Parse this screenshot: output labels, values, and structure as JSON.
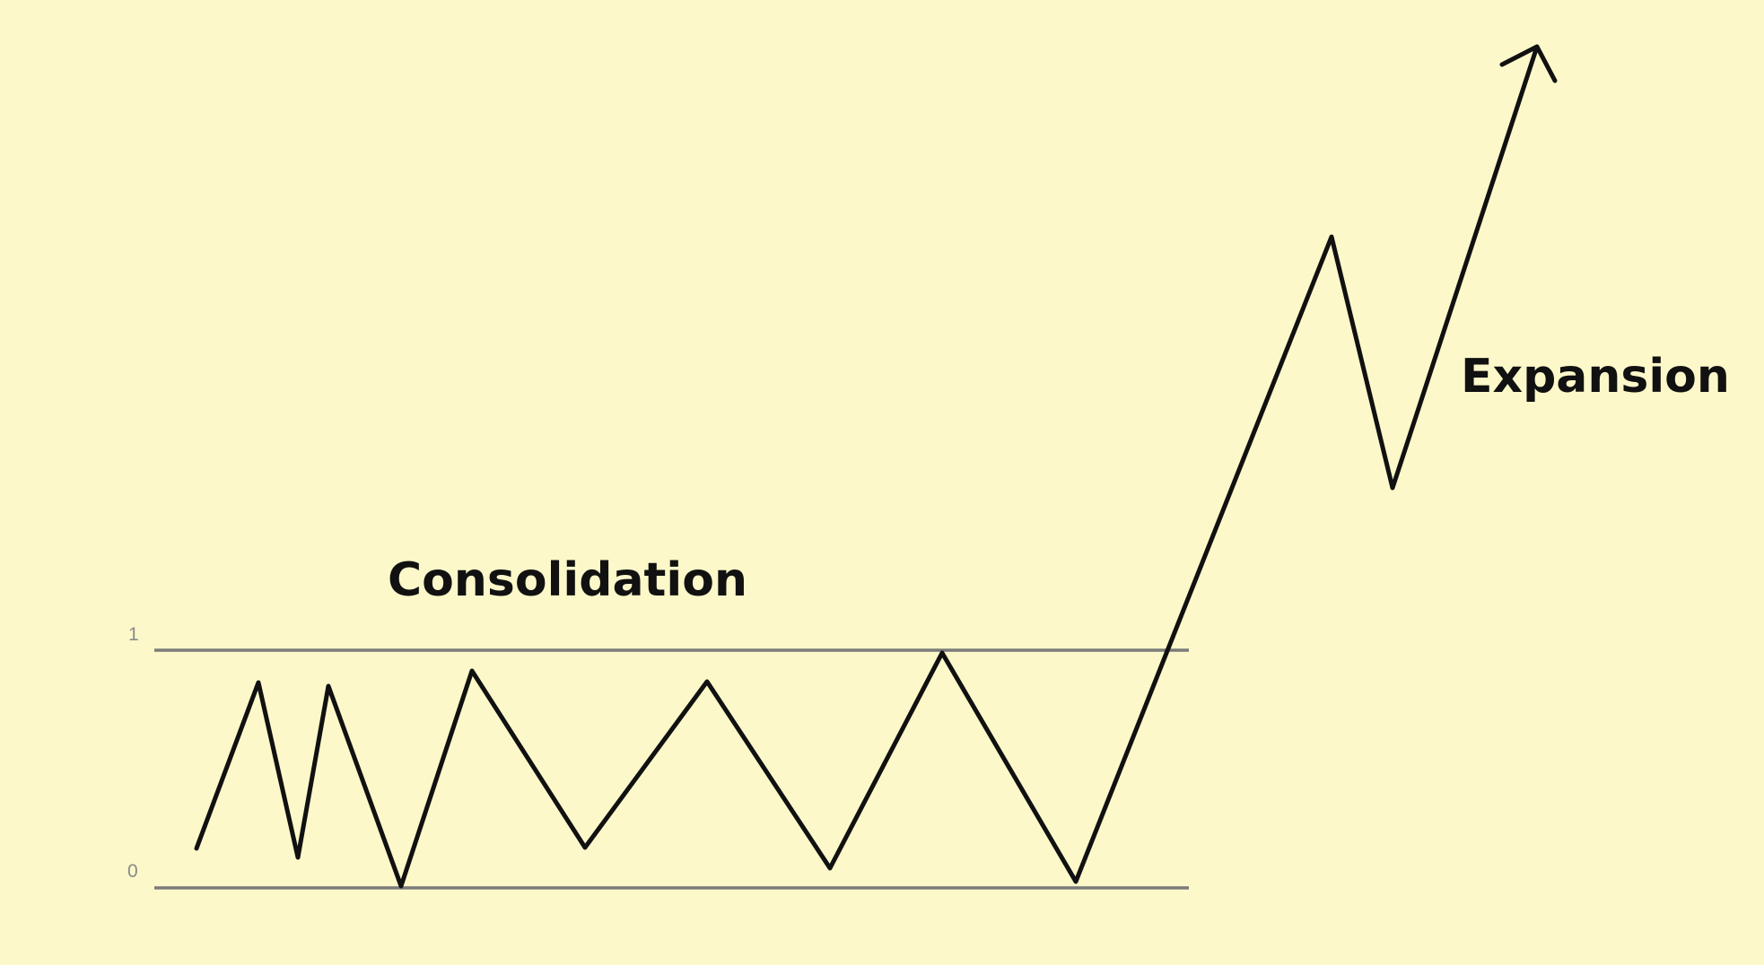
{
  "labels": {
    "consolidation": "Consolidation",
    "expansion": "Expansion"
  },
  "range": {
    "top_label": "1",
    "bottom_label": "0"
  },
  "colors": {
    "background": "#fcf8c9",
    "path": "#111111",
    "range_lines": "#7b7b7b",
    "tick_text": "#8a8a8a"
  }
}
